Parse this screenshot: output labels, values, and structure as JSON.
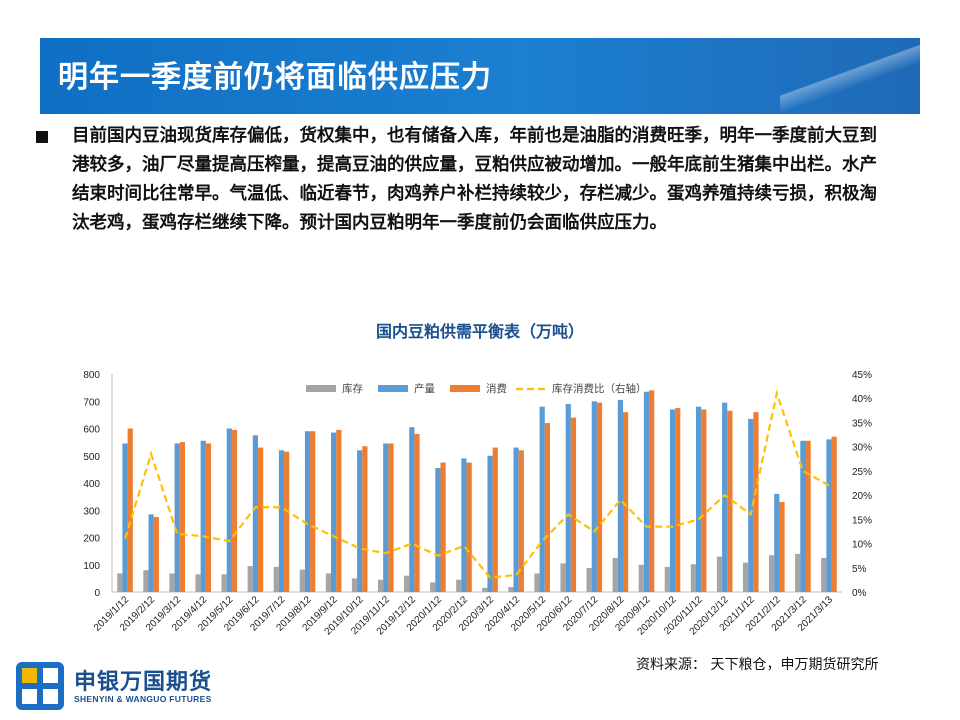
{
  "header": {
    "title": "明年一季度前仍将面临供应压力"
  },
  "body": {
    "paragraph": "目前国内豆油现货库存偏低，货权集中，也有储备入库，年前也是油脂的消费旺季，明年一季度前大豆到港较多，油厂尽量提高压榨量，提高豆油的供应量，豆粕供应被动增加。一般年底前生猪集中出栏。水产结束时间比往常早。气温低、临近春节，肉鸡养户补栏持续较少，存栏减少。蛋鸡养殖持续亏损，积极淘汰老鸡，蛋鸡存栏继续下降。预计国内豆粕明年一季度前仍会面临供应压力。"
  },
  "footer": {
    "source": "资料来源：  天下粮仓，申万期货研究所",
    "logo_cn": "申银万国期货",
    "logo_en": "SHENYIN & WANGUO FUTURES"
  },
  "colors": {
    "inventory": "#a5a5a5",
    "production": "#5b9bd5",
    "consumption": "#ed7d31",
    "ratio": "#ffc000",
    "title": "#1a4f8f"
  },
  "chart_data": {
    "type": "bar",
    "title": "国内豆粕供需平衡表（万吨）",
    "categories": [
      "2019/1/12",
      "2019/2/12",
      "2019/3/12",
      "2019/4/12",
      "2019/5/12",
      "2019/6/12",
      "2019/7/12",
      "2019/8/12",
      "2019/9/12",
      "2019/10/12",
      "2019/11/12",
      "2019/12/12",
      "2020/1/12",
      "2020/2/12",
      "2020/3/12",
      "2020/4/12",
      "2020/5/12",
      "2020/6/12",
      "2020/7/12",
      "2020/8/12",
      "2020/9/12",
      "2020/10/12",
      "2020/11/12",
      "2020/12/12",
      "2021/1/12",
      "2021/2/12",
      "2021/3/12",
      "2021/3/13"
    ],
    "yticks_left": [
      "0",
      "100",
      "200",
      "300",
      "400",
      "500",
      "600",
      "700",
      "800"
    ],
    "yticks_right": [
      "0%",
      "5%",
      "10%",
      "15%",
      "20%",
      "25%",
      "30%",
      "35%",
      "40%",
      "45%"
    ],
    "ylim_left": [
      0,
      800
    ],
    "ylim_right": [
      0,
      0.45
    ],
    "legend_position": "top",
    "series": [
      {
        "name": "库存",
        "kind": "bar",
        "axis": "left",
        "values": [
          68,
          80,
          68,
          65,
          65,
          95,
          92,
          82,
          68,
          50,
          45,
          60,
          35,
          45,
          15,
          18,
          68,
          105,
          88,
          125,
          100,
          92,
          102,
          130,
          108,
          135,
          140,
          125
        ]
      },
      {
        "name": "产量",
        "kind": "bar",
        "axis": "left",
        "values": [
          545,
          285,
          545,
          555,
          600,
          575,
          520,
          590,
          585,
          520,
          545,
          605,
          455,
          490,
          500,
          530,
          680,
          690,
          700,
          705,
          735,
          670,
          680,
          695,
          635,
          360,
          555,
          560
        ]
      },
      {
        "name": "消费",
        "kind": "bar",
        "axis": "left",
        "values": [
          600,
          275,
          550,
          545,
          595,
          530,
          515,
          590,
          595,
          535,
          545,
          580,
          475,
          475,
          530,
          520,
          620,
          640,
          695,
          660,
          740,
          675,
          670,
          665,
          660,
          330,
          555,
          570
        ]
      },
      {
        "name": "库存消费比（右轴）",
        "kind": "line",
        "axis": "right",
        "values": [
          0.11,
          0.285,
          0.12,
          0.115,
          0.105,
          0.175,
          0.175,
          0.14,
          0.115,
          0.09,
          0.08,
          0.1,
          0.075,
          0.095,
          0.03,
          0.035,
          0.105,
          0.16,
          0.125,
          0.19,
          0.135,
          0.135,
          0.15,
          0.2,
          0.16,
          0.41,
          0.25,
          0.22
        ]
      }
    ]
  }
}
